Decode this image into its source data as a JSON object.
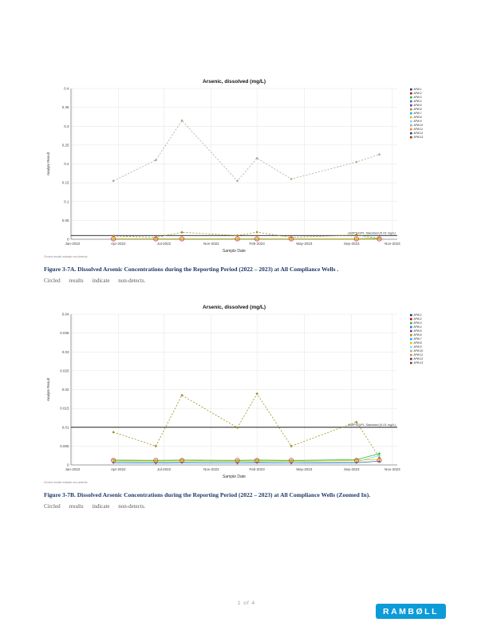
{
  "page": {
    "footer": {
      "page_number": "1 of 4",
      "logo_text": "RAMBØLL",
      "logo_color": "#0d9bd8"
    }
  },
  "figures": [
    {
      "caption": "Figure 3-7A. Dissolved Arsenic Concentrations during the Reporting Period (2022 – 2023) at All Compliance Wells .",
      "note": "Circled results indicate non-detects."
    },
    {
      "caption": "Figure 3-7B. Dissolved Arsenic Concentrations during the Reporting Period (2022 – 2023) at All Compliance Wells (Zoomed In).",
      "note": "Circled results indicate non-detects."
    }
  ],
  "chart_data": [
    {
      "type": "line",
      "title": "Arsenic, dissolved (mg/L)",
      "xlabel": "Sample Date",
      "ylabel": "Analyte Result",
      "ylim": [
        0,
        0.4
      ],
      "yticks": [
        0,
        0.05,
        0.1,
        0.15,
        0.2,
        0.25,
        0.3,
        0.35,
        0.4
      ],
      "grid": true,
      "legend_position": "right",
      "footnote": "Circled results indicate non-detects",
      "xticks": [
        {
          "f": 0.005,
          "label": "Jan-2022"
        },
        {
          "f": 0.145,
          "label": "Apr-2022"
        },
        {
          "f": 0.285,
          "label": "Jul-2022"
        },
        {
          "f": 0.43,
          "label": "Nov-2022"
        },
        {
          "f": 0.57,
          "label": "Feb-2023"
        },
        {
          "f": 0.715,
          "label": "May-2023"
        },
        {
          "f": 0.86,
          "label": "Sep-2023"
        },
        {
          "f": 0.985,
          "label": "Nov-2023"
        }
      ],
      "event_x": [
        0.13,
        0.26,
        0.34,
        0.51,
        0.57,
        0.675,
        0.875,
        0.945
      ],
      "series": [
        {
          "name": "APW-10",
          "color": "#b3a58e",
          "dash": "2,2",
          "values": [
            0.155,
            0.21,
            0.315,
            0.155,
            0.215,
            0.16,
            0.205,
            0.225
          ]
        },
        {
          "name": "APW-6",
          "color": "#9c8f1b",
          "dash": "2,2",
          "values": [
            0.0087,
            0.005,
            0.0185,
            0.0099,
            0.0189,
            0.005,
            0.0114,
            0.002
          ]
        },
        {
          "name": "APW-3",
          "color": "#2db82d",
          "dash": "",
          "values": [
            0.0013,
            0.0012,
            0.0013,
            0.0012,
            0.0013,
            0.0012,
            0.0014,
            0.003
          ]
        },
        {
          "name": "APW-9",
          "color": "#7fd4ff",
          "dash": "",
          "values": [
            0.0009,
            0.0008,
            0.0008,
            0.0009,
            0.0008,
            0.0009,
            0.0008,
            0.0025
          ]
        },
        {
          "name": "APW-4",
          "color": "#2e75b6",
          "dash": "",
          "values": [
            0.0006,
            0.0005,
            0.0006,
            0.0005,
            0.0006,
            0.0005,
            0.0006,
            0.001
          ]
        },
        {
          "name": "APW-8",
          "color": "#e6c200",
          "dash": "",
          "values": [
            0.0011,
            0.001,
            0.0011,
            0.001,
            0.0011,
            0.001,
            0.0012,
            0.0015
          ]
        }
      ],
      "nd_rings": [
        0,
        1,
        2,
        3,
        4,
        5,
        6,
        7
      ],
      "nd_value": 0.001,
      "standard": {
        "value": 0.01,
        "label": "GWPS/UPL Standard (0.01 mg/L)",
        "color": "#1a1a1a"
      },
      "legend": [
        {
          "label": "APW-1",
          "color": "#1f3864"
        },
        {
          "label": "APW-2",
          "color": "#c00000"
        },
        {
          "label": "APW-3",
          "color": "#2db82d"
        },
        {
          "label": "APW-4",
          "color": "#2e75b6"
        },
        {
          "label": "APW-5",
          "color": "#7030a0"
        },
        {
          "label": "APW-6",
          "color": "#9c8f1b"
        },
        {
          "label": "APW-7",
          "color": "#00b0f0"
        },
        {
          "label": "APW-8",
          "color": "#e6c200"
        },
        {
          "label": "APW-9",
          "color": "#7fd4ff"
        },
        {
          "label": "APW-10",
          "color": "#b3a58e"
        },
        {
          "label": "APW-11",
          "color": "#ed7d31"
        },
        {
          "label": "APW-12",
          "color": "#264478"
        },
        {
          "label": "APW-13",
          "color": "#843c0c"
        }
      ]
    },
    {
      "type": "line",
      "title": "Arsenic, dissolved (mg/L)",
      "xlabel": "Sample Date",
      "ylabel": "Analyte Result",
      "ylim": [
        0,
        0.04
      ],
      "yticks": [
        0,
        0.005,
        0.01,
        0.015,
        0.02,
        0.025,
        0.03,
        0.035,
        0.04
      ],
      "grid": true,
      "legend_position": "right",
      "footnote": "Circled results indicate non-detects",
      "xticks": [
        {
          "f": 0.005,
          "label": "Jan-2022"
        },
        {
          "f": 0.145,
          "label": "Apr-2022"
        },
        {
          "f": 0.285,
          "label": "Jul-2022"
        },
        {
          "f": 0.43,
          "label": "Nov-2022"
        },
        {
          "f": 0.57,
          "label": "Feb-2023"
        },
        {
          "f": 0.715,
          "label": "May-2023"
        },
        {
          "f": 0.86,
          "label": "Sep-2023"
        },
        {
          "f": 0.985,
          "label": "Nov-2023"
        }
      ],
      "event_x": [
        0.13,
        0.26,
        0.34,
        0.51,
        0.57,
        0.675,
        0.875,
        0.945
      ],
      "series": [
        {
          "name": "APW-6",
          "color": "#9c8f1b",
          "dash": "2,2",
          "values": [
            0.0087,
            0.005,
            0.0185,
            0.0099,
            0.0189,
            0.005,
            0.0114,
            0.002
          ]
        },
        {
          "name": "APW-3",
          "color": "#2db82d",
          "dash": "",
          "values": [
            0.0013,
            0.0012,
            0.0013,
            0.0012,
            0.0013,
            0.0012,
            0.0014,
            0.003
          ]
        },
        {
          "name": "APW-9",
          "color": "#7fd4ff",
          "dash": "",
          "values": [
            0.0009,
            0.0008,
            0.0008,
            0.0009,
            0.0008,
            0.0009,
            0.0008,
            0.0025
          ]
        },
        {
          "name": "APW-4",
          "color": "#2e75b6",
          "dash": "",
          "values": [
            0.0006,
            0.0005,
            0.0006,
            0.0005,
            0.0006,
            0.0005,
            0.0006,
            0.001
          ]
        },
        {
          "name": "APW-8",
          "color": "#e6c200",
          "dash": "",
          "values": [
            0.0011,
            0.001,
            0.0011,
            0.001,
            0.0011,
            0.001,
            0.0012,
            0.0015
          ]
        }
      ],
      "nd_rings": [
        0,
        1,
        2,
        3,
        4,
        5,
        6,
        7
      ],
      "nd_value": 0.0012,
      "standard": {
        "value": 0.01,
        "label": "GWPS/UPL Standard (0.01 mg/L)",
        "color": "#1a1a1a"
      },
      "legend": [
        {
          "label": "APW-1",
          "color": "#1f3864"
        },
        {
          "label": "APW-2",
          "color": "#c00000"
        },
        {
          "label": "APW-3",
          "color": "#2db82d"
        },
        {
          "label": "APW-4",
          "color": "#2e75b6"
        },
        {
          "label": "APW-5",
          "color": "#7030a0"
        },
        {
          "label": "APW-6",
          "color": "#9c8f1b"
        },
        {
          "label": "APW-7",
          "color": "#00b0f0"
        },
        {
          "label": "APW-8",
          "color": "#e6c200"
        },
        {
          "label": "APW-9",
          "color": "#7fd4ff"
        },
        {
          "label": "APW-10",
          "color": "#b3a58e"
        },
        {
          "label": "APW-11",
          "color": "#ed7d31"
        },
        {
          "label": "APW-12",
          "color": "#264478"
        },
        {
          "label": "APW-13",
          "color": "#843c0c"
        }
      ]
    }
  ]
}
